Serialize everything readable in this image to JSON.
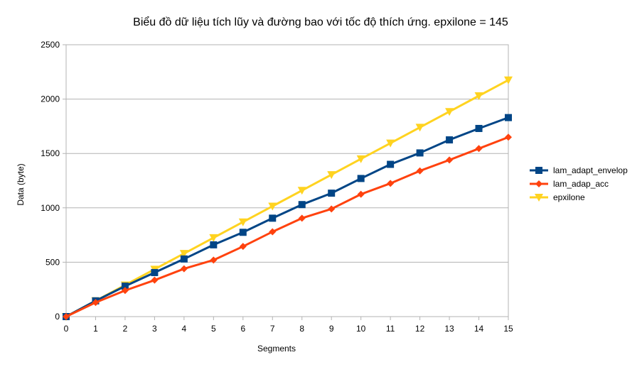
{
  "chart_data": {
    "type": "line",
    "title": "Biểu đồ dữ liệu tích lũy và đường bao với tốc độ thích ứng. epxilone = 145",
    "xlabel": "Segments",
    "ylabel": "Data (byte)",
    "x": [
      0,
      1,
      2,
      3,
      4,
      5,
      6,
      7,
      8,
      9,
      10,
      11,
      12,
      13,
      14,
      15
    ],
    "ylim": [
      0,
      2500
    ],
    "yticks": [
      0,
      500,
      1000,
      1500,
      2000,
      2500
    ],
    "grid": true,
    "legend_position": "right",
    "series": [
      {
        "name": "lam_adapt_envelop",
        "color": "#004586",
        "marker": "square",
        "values": [
          0,
          145,
          280,
          405,
          530,
          660,
          775,
          905,
          1030,
          1135,
          1270,
          1400,
          1505,
          1625,
          1730,
          1830
        ]
      },
      {
        "name": "lam_adap_acc",
        "color": "#ff420e",
        "marker": "diamond",
        "values": [
          0,
          130,
          240,
          335,
          440,
          520,
          645,
          780,
          905,
          990,
          1125,
          1225,
          1340,
          1440,
          1545,
          1650
        ]
      },
      {
        "name": "epxilone",
        "color": "#ffd320",
        "marker": "triangle-down",
        "values": [
          0,
          145,
          290,
          435,
          580,
          725,
          870,
          1015,
          1160,
          1305,
          1450,
          1595,
          1740,
          1885,
          2030,
          2175
        ]
      }
    ]
  }
}
